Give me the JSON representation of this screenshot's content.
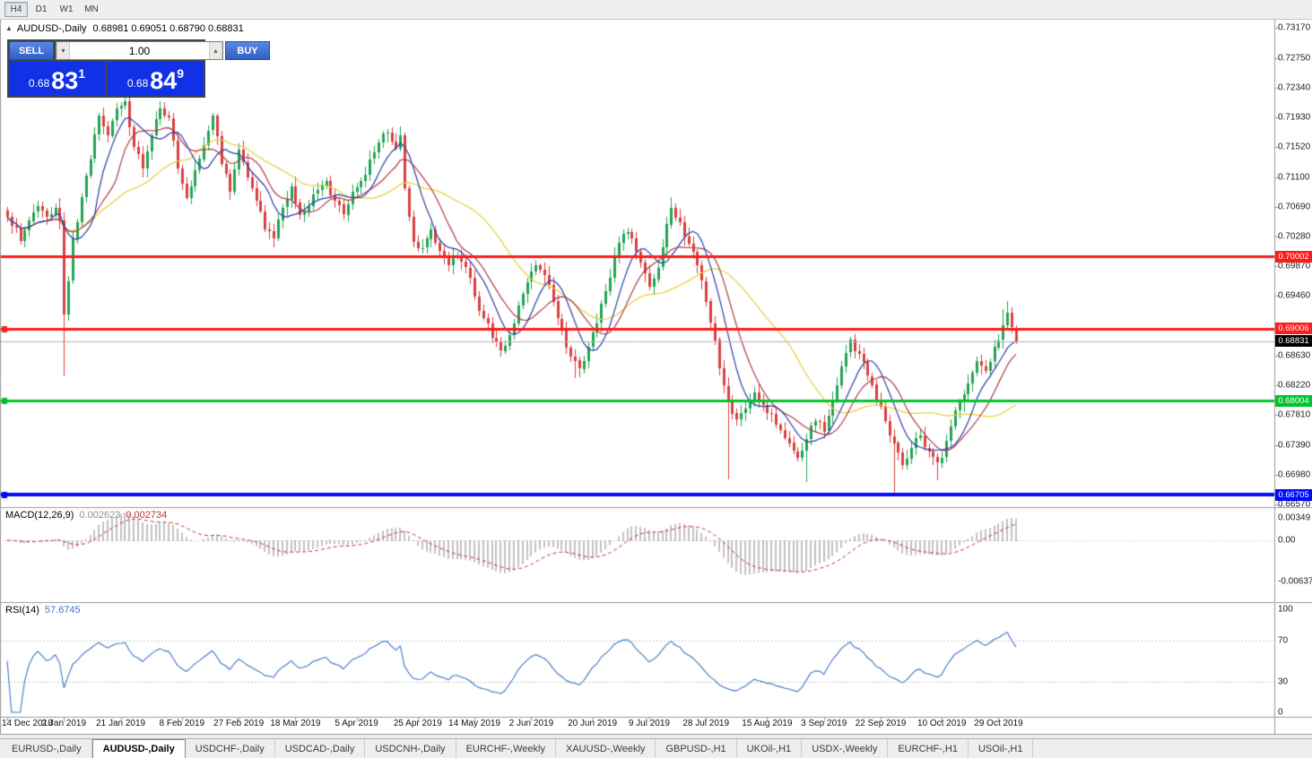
{
  "toolbar": {
    "timeframes": [
      "H4",
      "D1",
      "W1",
      "MN"
    ],
    "active": "H4"
  },
  "chart_header": {
    "symbol": "AUDUSD-,Daily",
    "ohlc": "0.68981 0.69051 0.68790 0.68831"
  },
  "trade_panel": {
    "sell_label": "SELL",
    "buy_label": "BUY",
    "volume": "1.00",
    "sell_price": {
      "prefix": "0.68",
      "big": "83",
      "sup": "1"
    },
    "buy_price": {
      "prefix": "0.68",
      "big": "84",
      "sup": "9"
    }
  },
  "price_axis": {
    "ticks": [
      {
        "label": "0.73170",
        "price": 0.7317
      },
      {
        "label": "0.72750",
        "price": 0.7275
      },
      {
        "label": "0.72340",
        "price": 0.7234
      },
      {
        "label": "0.71930",
        "price": 0.7193
      },
      {
        "label": "0.71520",
        "price": 0.7152
      },
      {
        "label": "0.71100",
        "price": 0.711
      },
      {
        "label": "0.70690",
        "price": 0.7069
      },
      {
        "label": "0.70280",
        "price": 0.7028
      },
      {
        "label": "0.69870",
        "price": 0.6987
      },
      {
        "label": "0.69460",
        "price": 0.6946
      },
      {
        "label": "0.68630",
        "price": 0.6863
      },
      {
        "label": "0.68220",
        "price": 0.6822
      },
      {
        "label": "0.67810",
        "price": 0.6781
      },
      {
        "label": "0.67390",
        "price": 0.6739
      },
      {
        "label": "0.66980",
        "price": 0.6698
      },
      {
        "label": "0.66570",
        "price": 0.6657
      }
    ]
  },
  "levels": [
    {
      "price": 0.70002,
      "label": "0.70002",
      "color": "#fd1c1c",
      "thickness": 3,
      "handle": false
    },
    {
      "price": 0.69006,
      "label": "0.69006",
      "color": "#fd1c1c",
      "thickness": 3,
      "handle": true
    },
    {
      "price": 0.68004,
      "label": "0.68004",
      "color": "#00c42b",
      "thickness": 3,
      "handle": true
    },
    {
      "price": 0.66705,
      "label": "0.66705",
      "color": "#0008ff",
      "thickness": 4,
      "handle": true
    }
  ],
  "current_price": {
    "price": 0.68831,
    "label": "0.68831"
  },
  "macd_panel": {
    "label": "MACD(12,26,9)",
    "value_main": "0.002623",
    "value_signal": "0.002734",
    "axis": [
      {
        "label": "0.00349",
        "value": 0.00349
      },
      {
        "label": "0.00",
        "value": 0
      },
      {
        "label": "-0.00637",
        "value": -0.00637
      }
    ]
  },
  "rsi_panel": {
    "label": "RSI(14)",
    "value": "57.6745",
    "axis": [
      {
        "label": "100",
        "value": 100
      },
      {
        "label": "70",
        "value": 70
      },
      {
        "label": "30",
        "value": 30
      },
      {
        "label": "0",
        "value": 0
      }
    ]
  },
  "date_axis": {
    "labels": [
      {
        "text": "14 Dec 2018",
        "i": 0
      },
      {
        "text": "2 Jan 2019",
        "i": 13
      },
      {
        "text": "21 Jan 2019",
        "i": 26
      },
      {
        "text": "8 Feb 2019",
        "i": 40
      },
      {
        "text": "27 Feb 2019",
        "i": 53
      },
      {
        "text": "18 Mar 2019",
        "i": 66
      },
      {
        "text": "5 Apr 2019",
        "i": 80
      },
      {
        "text": "25 Apr 2019",
        "i": 94
      },
      {
        "text": "14 May 2019",
        "i": 107
      },
      {
        "text": "2 Jun 2019",
        "i": 120
      },
      {
        "text": "20 Jun 2019",
        "i": 134
      },
      {
        "text": "9 Jul 2019",
        "i": 147
      },
      {
        "text": "28 Jul 2019",
        "i": 160
      },
      {
        "text": "15 Aug 2019",
        "i": 174
      },
      {
        "text": "3 Sep 2019",
        "i": 187
      },
      {
        "text": "22 Sep 2019",
        "i": 200
      },
      {
        "text": "10 Oct 2019",
        "i": 214
      },
      {
        "text": "29 Oct 2019",
        "i": 227
      }
    ]
  },
  "tabs": {
    "active_index": 1,
    "items": [
      "EURUSD-,Daily",
      "AUDUSD-,Daily",
      "USDCHF-,Daily",
      "USDCAD-,Daily",
      "USDCNH-,Daily",
      "EURCHF-,Weekly",
      "XAUUSD-,Weekly",
      "GBPUSD-,H1",
      "UKOil-,H1",
      "USDX-,Weekly",
      "EURCHF-,H1",
      "USOil-,H1"
    ]
  },
  "chart_data": {
    "type": "candlestick",
    "symbol": "AUDUSD-",
    "timeframe": "Daily",
    "bars": 232,
    "y_axis": {
      "min": 0.6657,
      "max": 0.7317
    },
    "last_bar_ohlc": {
      "open": 0.68981,
      "high": 0.69051,
      "low": 0.6879,
      "close": 0.68831
    },
    "horizontal_levels": [
      0.70002,
      0.69006,
      0.68004,
      0.66705
    ],
    "price_path": [
      [
        0,
        0.7055
      ],
      [
        2,
        0.704
      ],
      [
        3,
        0.7022
      ],
      [
        5,
        0.705
      ],
      [
        7,
        0.707
      ],
      [
        9,
        0.7055
      ],
      [
        11,
        0.7068
      ],
      [
        12,
        0.705
      ],
      [
        13,
        0.692
      ],
      [
        15,
        0.7025
      ],
      [
        17,
        0.7082
      ],
      [
        19,
        0.7135
      ],
      [
        21,
        0.7195
      ],
      [
        23,
        0.7168
      ],
      [
        25,
        0.7205
      ],
      [
        27,
        0.7215
      ],
      [
        29,
        0.7152
      ],
      [
        31,
        0.7122
      ],
      [
        33,
        0.7168
      ],
      [
        35,
        0.7205
      ],
      [
        37,
        0.7192
      ],
      [
        39,
        0.7122
      ],
      [
        41,
        0.7082
      ],
      [
        43,
        0.712
      ],
      [
        45,
        0.7155
      ],
      [
        47,
        0.7195
      ],
      [
        49,
        0.7128
      ],
      [
        51,
        0.709
      ],
      [
        53,
        0.7148
      ],
      [
        55,
        0.711
      ],
      [
        57,
        0.7078
      ],
      [
        59,
        0.7038
      ],
      [
        61,
        0.7025
      ],
      [
        63,
        0.7068
      ],
      [
        65,
        0.7098
      ],
      [
        67,
        0.7058
      ],
      [
        69,
        0.707
      ],
      [
        71,
        0.7092
      ],
      [
        73,
        0.7105
      ],
      [
        75,
        0.7078
      ],
      [
        77,
        0.7058
      ],
      [
        79,
        0.709
      ],
      [
        81,
        0.7105
      ],
      [
        83,
        0.7135
      ],
      [
        85,
        0.7158
      ],
      [
        87,
        0.7172
      ],
      [
        89,
        0.715
      ],
      [
        90,
        0.7168
      ],
      [
        91,
        0.7095
      ],
      [
        93,
        0.702
      ],
      [
        95,
        0.7012
      ],
      [
        97,
        0.7038
      ],
      [
        99,
        0.7008
      ],
      [
        101,
        0.6988
      ],
      [
        103,
        0.7002
      ],
      [
        105,
        0.6985
      ],
      [
        107,
        0.6945
      ],
      [
        109,
        0.6915
      ],
      [
        111,
        0.6888
      ],
      [
        113,
        0.687
      ],
      [
        115,
        0.6892
      ],
      [
        117,
        0.6932
      ],
      [
        119,
        0.6965
      ],
      [
        121,
        0.6988
      ],
      [
        123,
        0.6975
      ],
      [
        125,
        0.6938
      ],
      [
        127,
        0.6898
      ],
      [
        129,
        0.6862
      ],
      [
        131,
        0.6845
      ],
      [
        133,
        0.6875
      ],
      [
        135,
        0.6908
      ],
      [
        137,
        0.6952
      ],
      [
        139,
        0.7002
      ],
      [
        141,
        0.7032
      ],
      [
        143,
        0.7025
      ],
      [
        145,
        0.6992
      ],
      [
        147,
        0.6958
      ],
      [
        149,
        0.6985
      ],
      [
        151,
        0.7045
      ],
      [
        152,
        0.7068
      ],
      [
        154,
        0.7048
      ],
      [
        156,
        0.7018
      ],
      [
        158,
        0.6988
      ],
      [
        160,
        0.6938
      ],
      [
        162,
        0.6885
      ],
      [
        163,
        0.6845
      ],
      [
        165,
        0.68
      ],
      [
        167,
        0.6775
      ],
      [
        169,
        0.679
      ],
      [
        171,
        0.6812
      ],
      [
        173,
        0.6795
      ],
      [
        175,
        0.6782
      ],
      [
        177,
        0.676
      ],
      [
        179,
        0.6742
      ],
      [
        181,
        0.6722
      ],
      [
        183,
        0.6748
      ],
      [
        185,
        0.6772
      ],
      [
        187,
        0.6758
      ],
      [
        189,
        0.6802
      ],
      [
        191,
        0.6848
      ],
      [
        193,
        0.6885
      ],
      [
        195,
        0.6865
      ],
      [
        197,
        0.6835
      ],
      [
        199,
        0.68
      ],
      [
        201,
        0.6772
      ],
      [
        203,
        0.6742
      ],
      [
        205,
        0.6712
      ],
      [
        207,
        0.6735
      ],
      [
        209,
        0.6752
      ],
      [
        211,
        0.673
      ],
      [
        213,
        0.6715
      ],
      [
        214,
        0.6722
      ],
      [
        216,
        0.6765
      ],
      [
        218,
        0.6798
      ],
      [
        220,
        0.6825
      ],
      [
        222,
        0.6855
      ],
      [
        224,
        0.6842
      ],
      [
        226,
        0.6875
      ],
      [
        228,
        0.6905
      ],
      [
        229,
        0.6922
      ],
      [
        230,
        0.6902
      ],
      [
        231,
        0.6883
      ]
    ],
    "wick_overrides": [
      {
        "i": 13,
        "low": 0.6835
      },
      {
        "i": 130,
        "low": 0.6832
      },
      {
        "i": 152,
        "high": 0.7083
      },
      {
        "i": 165,
        "low": 0.6692
      },
      {
        "i": 183,
        "low": 0.6688
      },
      {
        "i": 203,
        "low": 0.6672
      },
      {
        "i": 213,
        "low": 0.669
      },
      {
        "i": 228,
        "high": 0.6928
      },
      {
        "i": 229,
        "high": 0.6938
      },
      {
        "i": 231,
        "open": 0.68981,
        "high": 0.69051,
        "low": 0.6879,
        "close": 0.68831
      }
    ],
    "moving_averages": [
      {
        "period": 30,
        "color": "#e8cf3a"
      },
      {
        "period": 13,
        "color": "#b23a48"
      },
      {
        "period": 8,
        "color": "#2b3fa8"
      }
    ],
    "colors": {
      "up": "#23a455",
      "down": "#d94040",
      "macd_hist": "#c2c2c2",
      "macd_signal": "#cc3333",
      "rsi_line": "#3e76c4",
      "current_price_line": "#b4b4b4"
    },
    "indicators": [
      {
        "name": "MACD",
        "params": [
          12,
          26,
          9
        ],
        "values": [
          0.002623,
          0.002734
        ]
      },
      {
        "name": "RSI",
        "params": [
          14
        ],
        "value": 57.6745
      }
    ]
  }
}
